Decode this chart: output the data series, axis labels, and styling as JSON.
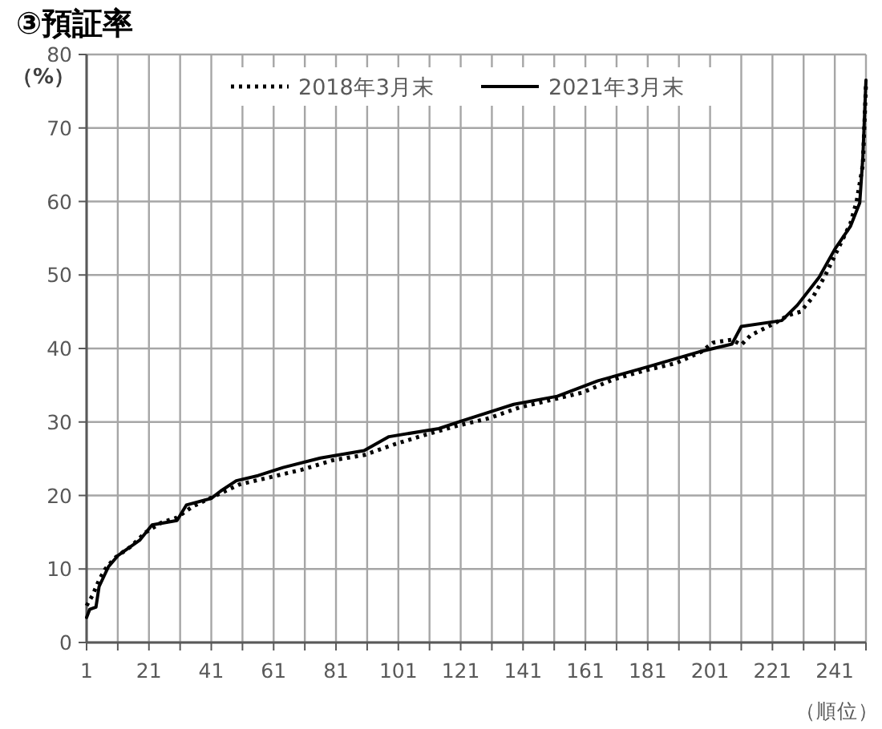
{
  "chart_data": {
    "type": "line",
    "title": "③預証率",
    "xlabel": "（順位）",
    "ylabel": "（%）",
    "xlim": [
      1,
      251
    ],
    "ylim": [
      0,
      80
    ],
    "xticks": [
      1,
      {
        "value": 11,
        "label": null
      },
      21,
      {
        "value": 31,
        "label": null
      },
      41,
      {
        "value": 51,
        "label": null
      },
      61,
      {
        "value": 71,
        "label": null
      },
      81,
      {
        "value": 91,
        "label": null
      },
      101,
      {
        "value": 111,
        "label": null
      },
      121,
      {
        "value": 131,
        "label": null
      },
      141,
      {
        "value": 151,
        "label": null
      },
      161,
      {
        "value": 171,
        "label": null
      },
      181,
      {
        "value": 191,
        "label": null
      },
      201,
      {
        "value": 211,
        "label": null
      },
      221,
      {
        "value": 231,
        "label": null
      },
      241,
      {
        "value": 251,
        "label": null
      }
    ],
    "yticks": [
      0,
      10,
      20,
      30,
      40,
      50,
      60,
      70,
      80
    ],
    "grid": true,
    "legend": "top",
    "marker": "none",
    "series": [
      {
        "name": "2018年3月末",
        "color": "#000000",
        "line_style": "dotted",
        "x": [
          1,
          3,
          5,
          7,
          10,
          15,
          20,
          25,
          30,
          35,
          40,
          45,
          50,
          60,
          70,
          80,
          90,
          100,
          110,
          120,
          130,
          140,
          150,
          160,
          170,
          180,
          190,
          198,
          202,
          208,
          211,
          214,
          222,
          226,
          230,
          234,
          238,
          242,
          246,
          248,
          250,
          251
        ],
        "values": [
          5,
          6.5,
          8.5,
          10,
          11.5,
          13,
          15,
          16.3,
          17,
          18.5,
          19.5,
          20.5,
          21.5,
          22.5,
          23.5,
          24.8,
          25.5,
          27,
          28.3,
          29.5,
          30.5,
          32,
          33,
          34,
          35.8,
          37,
          38,
          39.5,
          40.8,
          41.2,
          40.5,
          41.8,
          43.5,
          44.5,
          45,
          47,
          50,
          53.5,
          57,
          60,
          65,
          76
        ]
      },
      {
        "name": "2021年3月末",
        "color": "#000000",
        "line_style": "solid",
        "x": [
          1,
          2,
          4,
          5,
          8,
          11,
          18,
          22,
          30,
          33,
          41,
          44,
          49,
          56,
          64,
          76,
          90,
          98,
          114,
          121,
          138,
          152,
          165,
          181,
          198,
          208,
          211,
          224,
          229,
          236,
          241,
          246,
          249,
          250,
          251
        ],
        "values": [
          3.4,
          4.5,
          4.8,
          7.6,
          10.3,
          11.8,
          13.9,
          16,
          16.6,
          18.7,
          19.6,
          20.6,
          22,
          22.7,
          23.8,
          25.1,
          26.1,
          28,
          29.1,
          30.1,
          32.4,
          33.5,
          35.6,
          37.5,
          39.6,
          40.6,
          43,
          43.8,
          45.9,
          49.7,
          53.5,
          56.6,
          59.8,
          66,
          76.5
        ]
      }
    ]
  }
}
